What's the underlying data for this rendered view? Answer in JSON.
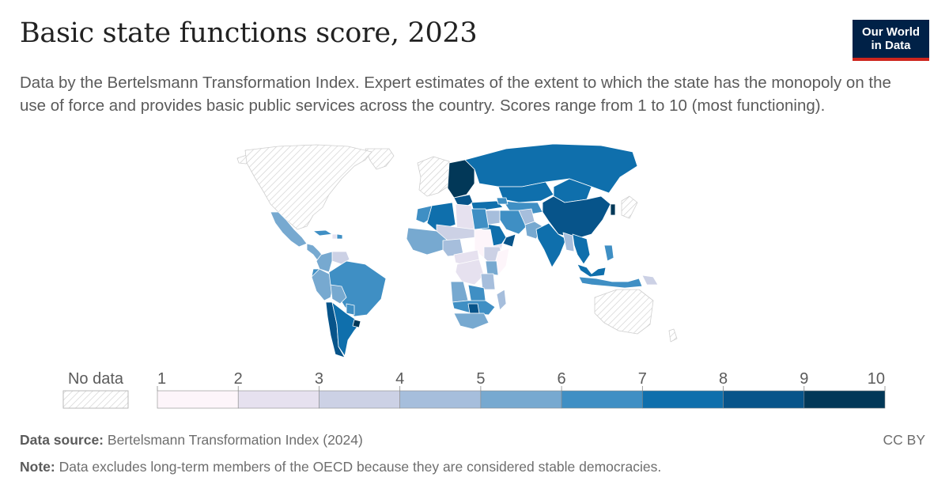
{
  "header": {
    "title": "Basic state functions score, 2023",
    "subtitle": "Data by the Bertelsmann Transformation Index. Expert estimates of the extent to which the state has the monopoly on the use of force and provides basic public services across the country. Scores range from 1 to 10 (most functioning).",
    "logo_line1": "Our World",
    "logo_line2": "in Data"
  },
  "legend": {
    "no_data_label": "No data",
    "ticks": [
      "1",
      "2",
      "3",
      "4",
      "5",
      "6",
      "7",
      "8",
      "9",
      "10"
    ],
    "bins": [
      {
        "range": [
          1,
          2
        ],
        "color": "#fdf5fa"
      },
      {
        "range": [
          2,
          3
        ],
        "color": "#e6e1ef"
      },
      {
        "range": [
          3,
          4
        ],
        "color": "#ccd1e5"
      },
      {
        "range": [
          4,
          5
        ],
        "color": "#a6bedc"
      },
      {
        "range": [
          5,
          6
        ],
        "color": "#77a9d0"
      },
      {
        "range": [
          6,
          7
        ],
        "color": "#3f8fc4"
      },
      {
        "range": [
          7,
          8
        ],
        "color": "#0f6fac"
      },
      {
        "range": [
          8,
          9
        ],
        "color": "#07548a"
      },
      {
        "range": [
          9,
          10
        ],
        "color": "#023858"
      }
    ]
  },
  "footer": {
    "source_label": "Data source:",
    "source_text": "Bertelsmann Transformation Index (2024)",
    "note_label": "Note:",
    "note_text": "Data excludes long-term members of the OECD because they are considered stable democracies.",
    "license": "CC BY"
  },
  "map_data": {
    "regions": [
      {
        "key": "greenland",
        "value": null
      },
      {
        "key": "north-america",
        "value": null
      },
      {
        "key": "mexico",
        "value": 5
      },
      {
        "key": "central-america",
        "value": 5
      },
      {
        "key": "cuba",
        "value": 6
      },
      {
        "key": "haiti",
        "value": 2
      },
      {
        "key": "dominican-republic",
        "value": 6
      },
      {
        "key": "venezuela",
        "value": 3
      },
      {
        "key": "colombia",
        "value": 5
      },
      {
        "key": "ecuador",
        "value": 6
      },
      {
        "key": "peru",
        "value": 5
      },
      {
        "key": "brazil",
        "value": 6
      },
      {
        "key": "bolivia",
        "value": 5
      },
      {
        "key": "paraguay",
        "value": 6
      },
      {
        "key": "chile",
        "value": 8
      },
      {
        "key": "argentina",
        "value": 7
      },
      {
        "key": "uruguay",
        "value": 9
      },
      {
        "key": "western-europe",
        "value": null
      },
      {
        "key": "central-eastern-europe",
        "value": 9
      },
      {
        "key": "balkans",
        "value": 8
      },
      {
        "key": "russia",
        "value": 7
      },
      {
        "key": "kazakhstan",
        "value": 7
      },
      {
        "key": "central-asia",
        "value": 6
      },
      {
        "key": "mongolia",
        "value": 7
      },
      {
        "key": "china",
        "value": 8
      },
      {
        "key": "korea",
        "value": 9
      },
      {
        "key": "japan",
        "value": null
      },
      {
        "key": "turkey",
        "value": 7
      },
      {
        "key": "caucasus",
        "value": 6
      },
      {
        "key": "iran",
        "value": 6
      },
      {
        "key": "iraq-syria",
        "value": 4
      },
      {
        "key": "afghanistan",
        "value": 4
      },
      {
        "key": "pakistan",
        "value": 5
      },
      {
        "key": "india",
        "value": 7
      },
      {
        "key": "saudi-arabia",
        "value": 7
      },
      {
        "key": "yemen",
        "value": 2
      },
      {
        "key": "oman",
        "value": 8
      },
      {
        "key": "myanmar",
        "value": 4
      },
      {
        "key": "mainland-southeast-asia",
        "value": 7
      },
      {
        "key": "malaysia",
        "value": 7
      },
      {
        "key": "indonesia",
        "value": 6
      },
      {
        "key": "philippines",
        "value": 6
      },
      {
        "key": "papua-new-guinea",
        "value": 3
      },
      {
        "key": "australia",
        "value": null
      },
      {
        "key": "new-zealand",
        "value": null
      },
      {
        "key": "morocco",
        "value": 6
      },
      {
        "key": "algeria",
        "value": 7
      },
      {
        "key": "libya",
        "value": 2
      },
      {
        "key": "egypt",
        "value": 6
      },
      {
        "key": "west-africa",
        "value": 5
      },
      {
        "key": "sahel",
        "value": 3
      },
      {
        "key": "nigeria",
        "value": 4
      },
      {
        "key": "sudan",
        "value": 1
      },
      {
        "key": "ethiopia",
        "value": 3
      },
      {
        "key": "somalia",
        "value": 1
      },
      {
        "key": "kenya",
        "value": 5
      },
      {
        "key": "central-africa",
        "value": 2
      },
      {
        "key": "dr-congo",
        "value": 2
      },
      {
        "key": "tanzania",
        "value": 4
      },
      {
        "key": "angola",
        "value": 5
      },
      {
        "key": "zambia",
        "value": 6
      },
      {
        "key": "southern-africa",
        "value": 6
      },
      {
        "key": "botswana",
        "value": 8
      },
      {
        "key": "south-africa",
        "value": 5
      },
      {
        "key": "madagascar",
        "value": 4
      }
    ]
  }
}
